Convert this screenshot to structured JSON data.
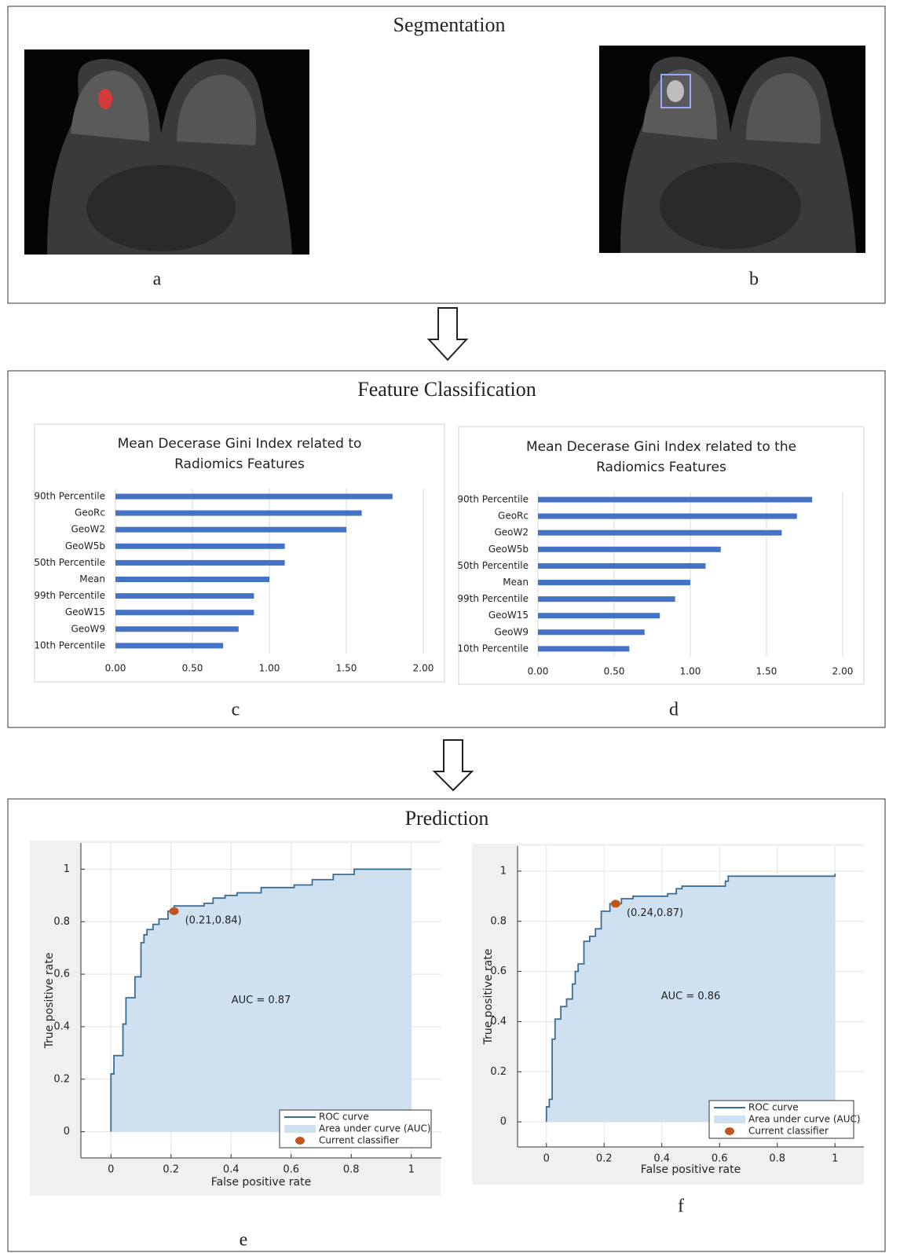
{
  "sections": [
    {
      "title": "Segmentation",
      "panels": [
        "a",
        "b"
      ]
    },
    {
      "title": "Feature Classification",
      "panels": [
        "c",
        "d"
      ]
    },
    {
      "title": "Prediction",
      "panels": [
        "e",
        "f"
      ]
    }
  ],
  "chart_data": [
    {
      "type": "barh",
      "title": "Mean Decerase Gini Index related to Radiomics Features",
      "categories": [
        "90th Percentile",
        "GeoRc",
        "GeoW2",
        "GeoW5b",
        "50th Percentile",
        "Mean",
        "99th Percentile",
        "GeoW15",
        "GeoW9",
        "10th Percentile"
      ],
      "values": [
        1.8,
        1.6,
        1.5,
        1.1,
        1.1,
        1.0,
        0.9,
        0.9,
        0.8,
        0.7
      ],
      "color": "#4472c4",
      "xlim": [
        0,
        2
      ],
      "xticks": [
        {
          "value": 0,
          "label": "0.00"
        },
        {
          "value": 0.5,
          "label": "0.50"
        },
        {
          "value": 1,
          "label": "1.00"
        },
        {
          "value": 1.5,
          "label": "1.50"
        },
        {
          "value": 2,
          "label": "2.00"
        }
      ],
      "grid": true
    },
    {
      "type": "barh",
      "title": "Mean Decerase Gini Index related to the Radiomics Features",
      "categories": [
        "90th Percentile",
        "GeoRc",
        "GeoW2",
        "GeoW5b",
        "50th Percentile",
        "Mean",
        "99th Percentile",
        "GeoW15",
        "GeoW9",
        "10th Percentile"
      ],
      "values": [
        1.8,
        1.7,
        1.6,
        1.2,
        1.1,
        1.0,
        0.9,
        0.8,
        0.7,
        0.6
      ],
      "color": "#4472c4",
      "xlim": [
        0,
        2
      ],
      "xticks": [
        {
          "value": 0,
          "label": "0.00"
        },
        {
          "value": 0.5,
          "label": "0.50"
        },
        {
          "value": 1,
          "label": "1.00"
        },
        {
          "value": 1.5,
          "label": "1.50"
        },
        {
          "value": 2,
          "label": "2.00"
        }
      ],
      "grid": true
    },
    {
      "type": "roc",
      "xlabel": "False positive rate",
      "ylabel": "True positive rate",
      "xlim": [
        -0.1,
        1.1
      ],
      "ylim": [
        -0.1,
        1.1
      ],
      "xticks": [
        0,
        0.2,
        0.4,
        0.6,
        0.8,
        1
      ],
      "yticks": [
        0,
        0.2,
        0.4,
        0.6,
        0.8,
        1
      ],
      "grid": true,
      "legend": "lower right",
      "series": [
        {
          "name": "ROC curve",
          "color": "#3a6d94",
          "x": [
            0,
            0,
            0.01,
            0.01,
            0.04,
            0.04,
            0.05,
            0.05,
            0.08,
            0.08,
            0.1,
            0.1,
            0.11,
            0.11,
            0.12,
            0.12,
            0.14,
            0.14,
            0.16,
            0.16,
            0.19,
            0.19,
            0.21,
            0.21,
            0.31,
            0.31,
            0.34,
            0.34,
            0.38,
            0.38,
            0.42,
            0.42,
            0.5,
            0.5,
            0.61,
            0.61,
            0.67,
            0.67,
            0.74,
            0.74,
            0.81,
            0.81,
            1
          ],
          "values": [
            0,
            0.22,
            0.22,
            0.29,
            0.29,
            0.41,
            0.41,
            0.51,
            0.51,
            0.59,
            0.59,
            0.72,
            0.72,
            0.75,
            0.75,
            0.77,
            0.77,
            0.79,
            0.79,
            0.81,
            0.81,
            0.84,
            0.84,
            0.86,
            0.86,
            0.87,
            0.87,
            0.89,
            0.89,
            0.9,
            0.9,
            0.91,
            0.91,
            0.93,
            0.93,
            0.94,
            0.94,
            0.96,
            0.96,
            0.98,
            0.98,
            1,
            1
          ]
        },
        {
          "name": "Area under curve (AUC)",
          "color": "#cfe0f0"
        },
        {
          "name": "Current classifier",
          "color": "#c0561e",
          "x": [
            0.21
          ],
          "values": [
            0.84
          ]
        }
      ],
      "annotations": [
        "(0.21,0.84)",
        "AUC = 0.87"
      ]
    },
    {
      "type": "roc",
      "xlabel": "False positive rate",
      "ylabel": "True positive rate",
      "xlim": [
        -0.1,
        1.1
      ],
      "ylim": [
        -0.1,
        1.1
      ],
      "xticks": [
        0,
        0.2,
        0.4,
        0.6,
        0.8,
        1
      ],
      "yticks": [
        0,
        0.2,
        0.4,
        0.6,
        0.8,
        1
      ],
      "grid": true,
      "legend": "lower right",
      "series": [
        {
          "name": "ROC curve",
          "color": "#3a6d94",
          "x": [
            0,
            0,
            0.01,
            0.01,
            0.02,
            0.02,
            0.03,
            0.03,
            0.05,
            0.05,
            0.07,
            0.07,
            0.09,
            0.09,
            0.1,
            0.1,
            0.11,
            0.11,
            0.13,
            0.13,
            0.15,
            0.15,
            0.17,
            0.17,
            0.19,
            0.19,
            0.22,
            0.22,
            0.26,
            0.26,
            0.3,
            0.3,
            0.42,
            0.42,
            0.45,
            0.45,
            0.47,
            0.47,
            0.62,
            0.62,
            0.63,
            0.63,
            1,
            1
          ],
          "values": [
            0,
            0.06,
            0.06,
            0.09,
            0.09,
            0.33,
            0.33,
            0.41,
            0.41,
            0.46,
            0.46,
            0.49,
            0.49,
            0.55,
            0.55,
            0.6,
            0.6,
            0.63,
            0.63,
            0.72,
            0.72,
            0.74,
            0.74,
            0.77,
            0.77,
            0.84,
            0.84,
            0.87,
            0.87,
            0.89,
            0.89,
            0.9,
            0.9,
            0.91,
            0.91,
            0.93,
            0.93,
            0.94,
            0.94,
            0.96,
            0.96,
            0.98,
            0.98,
            0.99
          ]
        },
        {
          "name": "Area under curve (AUC)",
          "color": "#cfe0f0"
        },
        {
          "name": "Current classifier",
          "color": "#c0561e",
          "x": [
            0.24
          ],
          "values": [
            0.87
          ]
        }
      ],
      "annotations": [
        "(0.24,0.87)",
        "AUC = 0.86"
      ]
    }
  ]
}
